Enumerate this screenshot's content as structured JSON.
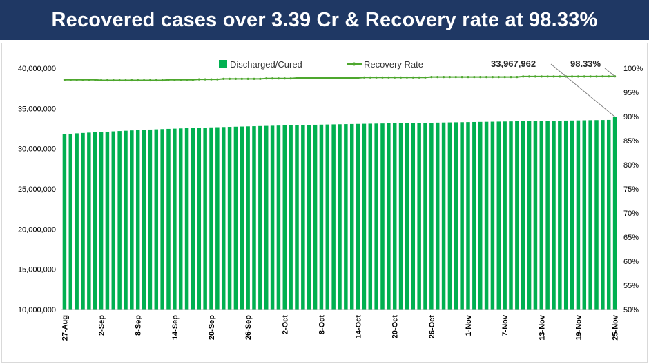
{
  "header": {
    "title": "Recovered cases over 3.39 Cr & Recovery rate at 98.33%"
  },
  "colors": {
    "banner": "#1f3864",
    "bar": "#00b050",
    "line": "#4ea72e"
  },
  "chart_data": {
    "type": "bar",
    "title": "",
    "xlabel": "",
    "ylabel": "",
    "y2label": "",
    "ylim": [
      10000000,
      40000000
    ],
    "y2lim": [
      50,
      100
    ],
    "y_ticks": [
      "10,000,000",
      "15,000,000",
      "20,000,000",
      "25,000,000",
      "30,000,000",
      "35,000,000",
      "40,000,000"
    ],
    "y2_ticks": [
      "50%",
      "55%",
      "60%",
      "65%",
      "70%",
      "75%",
      "80%",
      "85%",
      "90%",
      "95%",
      "100%"
    ],
    "x_tick_labels": [
      "27-Aug",
      "2-Sep",
      "8-Sep",
      "14-Sep",
      "20-Sep",
      "26-Sep",
      "2-Oct",
      "8-Oct",
      "14-Oct",
      "20-Oct",
      "26-Oct",
      "1-Nov",
      "7-Nov",
      "13-Nov",
      "19-Nov",
      "25-Nov"
    ],
    "grid": false,
    "legend_position": "top",
    "x": [
      "27-Aug",
      "28-Aug",
      "29-Aug",
      "30-Aug",
      "31-Aug",
      "1-Sep",
      "2-Sep",
      "3-Sep",
      "4-Sep",
      "5-Sep",
      "6-Sep",
      "7-Sep",
      "8-Sep",
      "9-Sep",
      "10-Sep",
      "11-Sep",
      "12-Sep",
      "13-Sep",
      "14-Sep",
      "15-Sep",
      "16-Sep",
      "17-Sep",
      "18-Sep",
      "19-Sep",
      "20-Sep",
      "21-Sep",
      "22-Sep",
      "23-Sep",
      "24-Sep",
      "25-Sep",
      "26-Sep",
      "27-Sep",
      "28-Sep",
      "29-Sep",
      "30-Sep",
      "1-Oct",
      "2-Oct",
      "3-Oct",
      "4-Oct",
      "5-Oct",
      "6-Oct",
      "7-Oct",
      "8-Oct",
      "9-Oct",
      "10-Oct",
      "11-Oct",
      "12-Oct",
      "13-Oct",
      "14-Oct",
      "15-Oct",
      "16-Oct",
      "17-Oct",
      "18-Oct",
      "19-Oct",
      "20-Oct",
      "21-Oct",
      "22-Oct",
      "23-Oct",
      "24-Oct",
      "25-Oct",
      "26-Oct",
      "27-Oct",
      "28-Oct",
      "29-Oct",
      "30-Oct",
      "31-Oct",
      "1-Nov",
      "2-Nov",
      "3-Nov",
      "4-Nov",
      "5-Nov",
      "6-Nov",
      "7-Nov",
      "8-Nov",
      "9-Nov",
      "10-Nov",
      "11-Nov",
      "12-Nov",
      "13-Nov",
      "14-Nov",
      "15-Nov",
      "16-Nov",
      "17-Nov",
      "18-Nov",
      "19-Nov",
      "20-Nov",
      "21-Nov",
      "22-Nov",
      "23-Nov",
      "24-Nov",
      "25-Nov"
    ],
    "series": [
      {
        "name": "Discharged/Cured",
        "axis": "left",
        "type": "bar",
        "values": [
          31813000,
          31860000,
          31908000,
          31955000,
          31998000,
          32037000,
          32076000,
          32115000,
          32153000,
          32193000,
          32230000,
          32270000,
          32310000,
          32345000,
          32375000,
          32405000,
          32435000,
          32463000,
          32490000,
          32520000,
          32548000,
          32575000,
          32600000,
          32625000,
          32648000,
          32670000,
          32692000,
          32712000,
          32733000,
          32754000,
          32775000,
          32795000,
          32815000,
          32834000,
          32853000,
          32872000,
          32891000,
          32908000,
          32925000,
          32942000,
          32959000,
          32975000,
          32990000,
          33005000,
          33020000,
          33035000,
          33050000,
          33064000,
          33078000,
          33091000,
          33104000,
          33117000,
          33130000,
          33142000,
          33154000,
          33166000,
          33178000,
          33190000,
          33202000,
          33215000,
          33228000,
          33241000,
          33254000,
          33267000,
          33280000,
          33292000,
          33304000,
          33316000,
          33328000,
          33340000,
          33352000,
          33364000,
          33376000,
          33388000,
          33400000,
          33412000,
          33424000,
          33435000,
          33446000,
          33457000,
          33468000,
          33480000,
          33492000,
          33504000,
          33516000,
          33528000,
          33540000,
          33552000,
          33564000,
          33576000,
          33967962
        ]
      },
      {
        "name": "Recovery Rate",
        "axis": "right",
        "type": "line",
        "values": [
          97.6,
          97.6,
          97.6,
          97.6,
          97.6,
          97.6,
          97.5,
          97.5,
          97.5,
          97.5,
          97.5,
          97.5,
          97.5,
          97.5,
          97.5,
          97.5,
          97.5,
          97.6,
          97.6,
          97.6,
          97.6,
          97.6,
          97.7,
          97.7,
          97.7,
          97.7,
          97.8,
          97.8,
          97.8,
          97.8,
          97.8,
          97.8,
          97.8,
          97.9,
          97.9,
          97.9,
          97.9,
          97.9,
          98.0,
          98.0,
          98.0,
          98.0,
          98.0,
          98.0,
          98.0,
          98.0,
          98.0,
          98.0,
          98.0,
          98.1,
          98.1,
          98.1,
          98.1,
          98.1,
          98.1,
          98.1,
          98.1,
          98.1,
          98.1,
          98.1,
          98.2,
          98.2,
          98.2,
          98.2,
          98.2,
          98.2,
          98.2,
          98.2,
          98.2,
          98.2,
          98.2,
          98.2,
          98.2,
          98.2,
          98.2,
          98.3,
          98.3,
          98.3,
          98.3,
          98.3,
          98.3,
          98.3,
          98.3,
          98.3,
          98.3,
          98.3,
          98.3,
          98.3,
          98.33,
          98.33,
          98.33
        ]
      }
    ],
    "annotations": [
      {
        "text": "33,967,962",
        "target": "Discharged/Cured",
        "point": "last"
      },
      {
        "text": "98.33%",
        "target": "Recovery Rate",
        "point": "last"
      }
    ]
  }
}
